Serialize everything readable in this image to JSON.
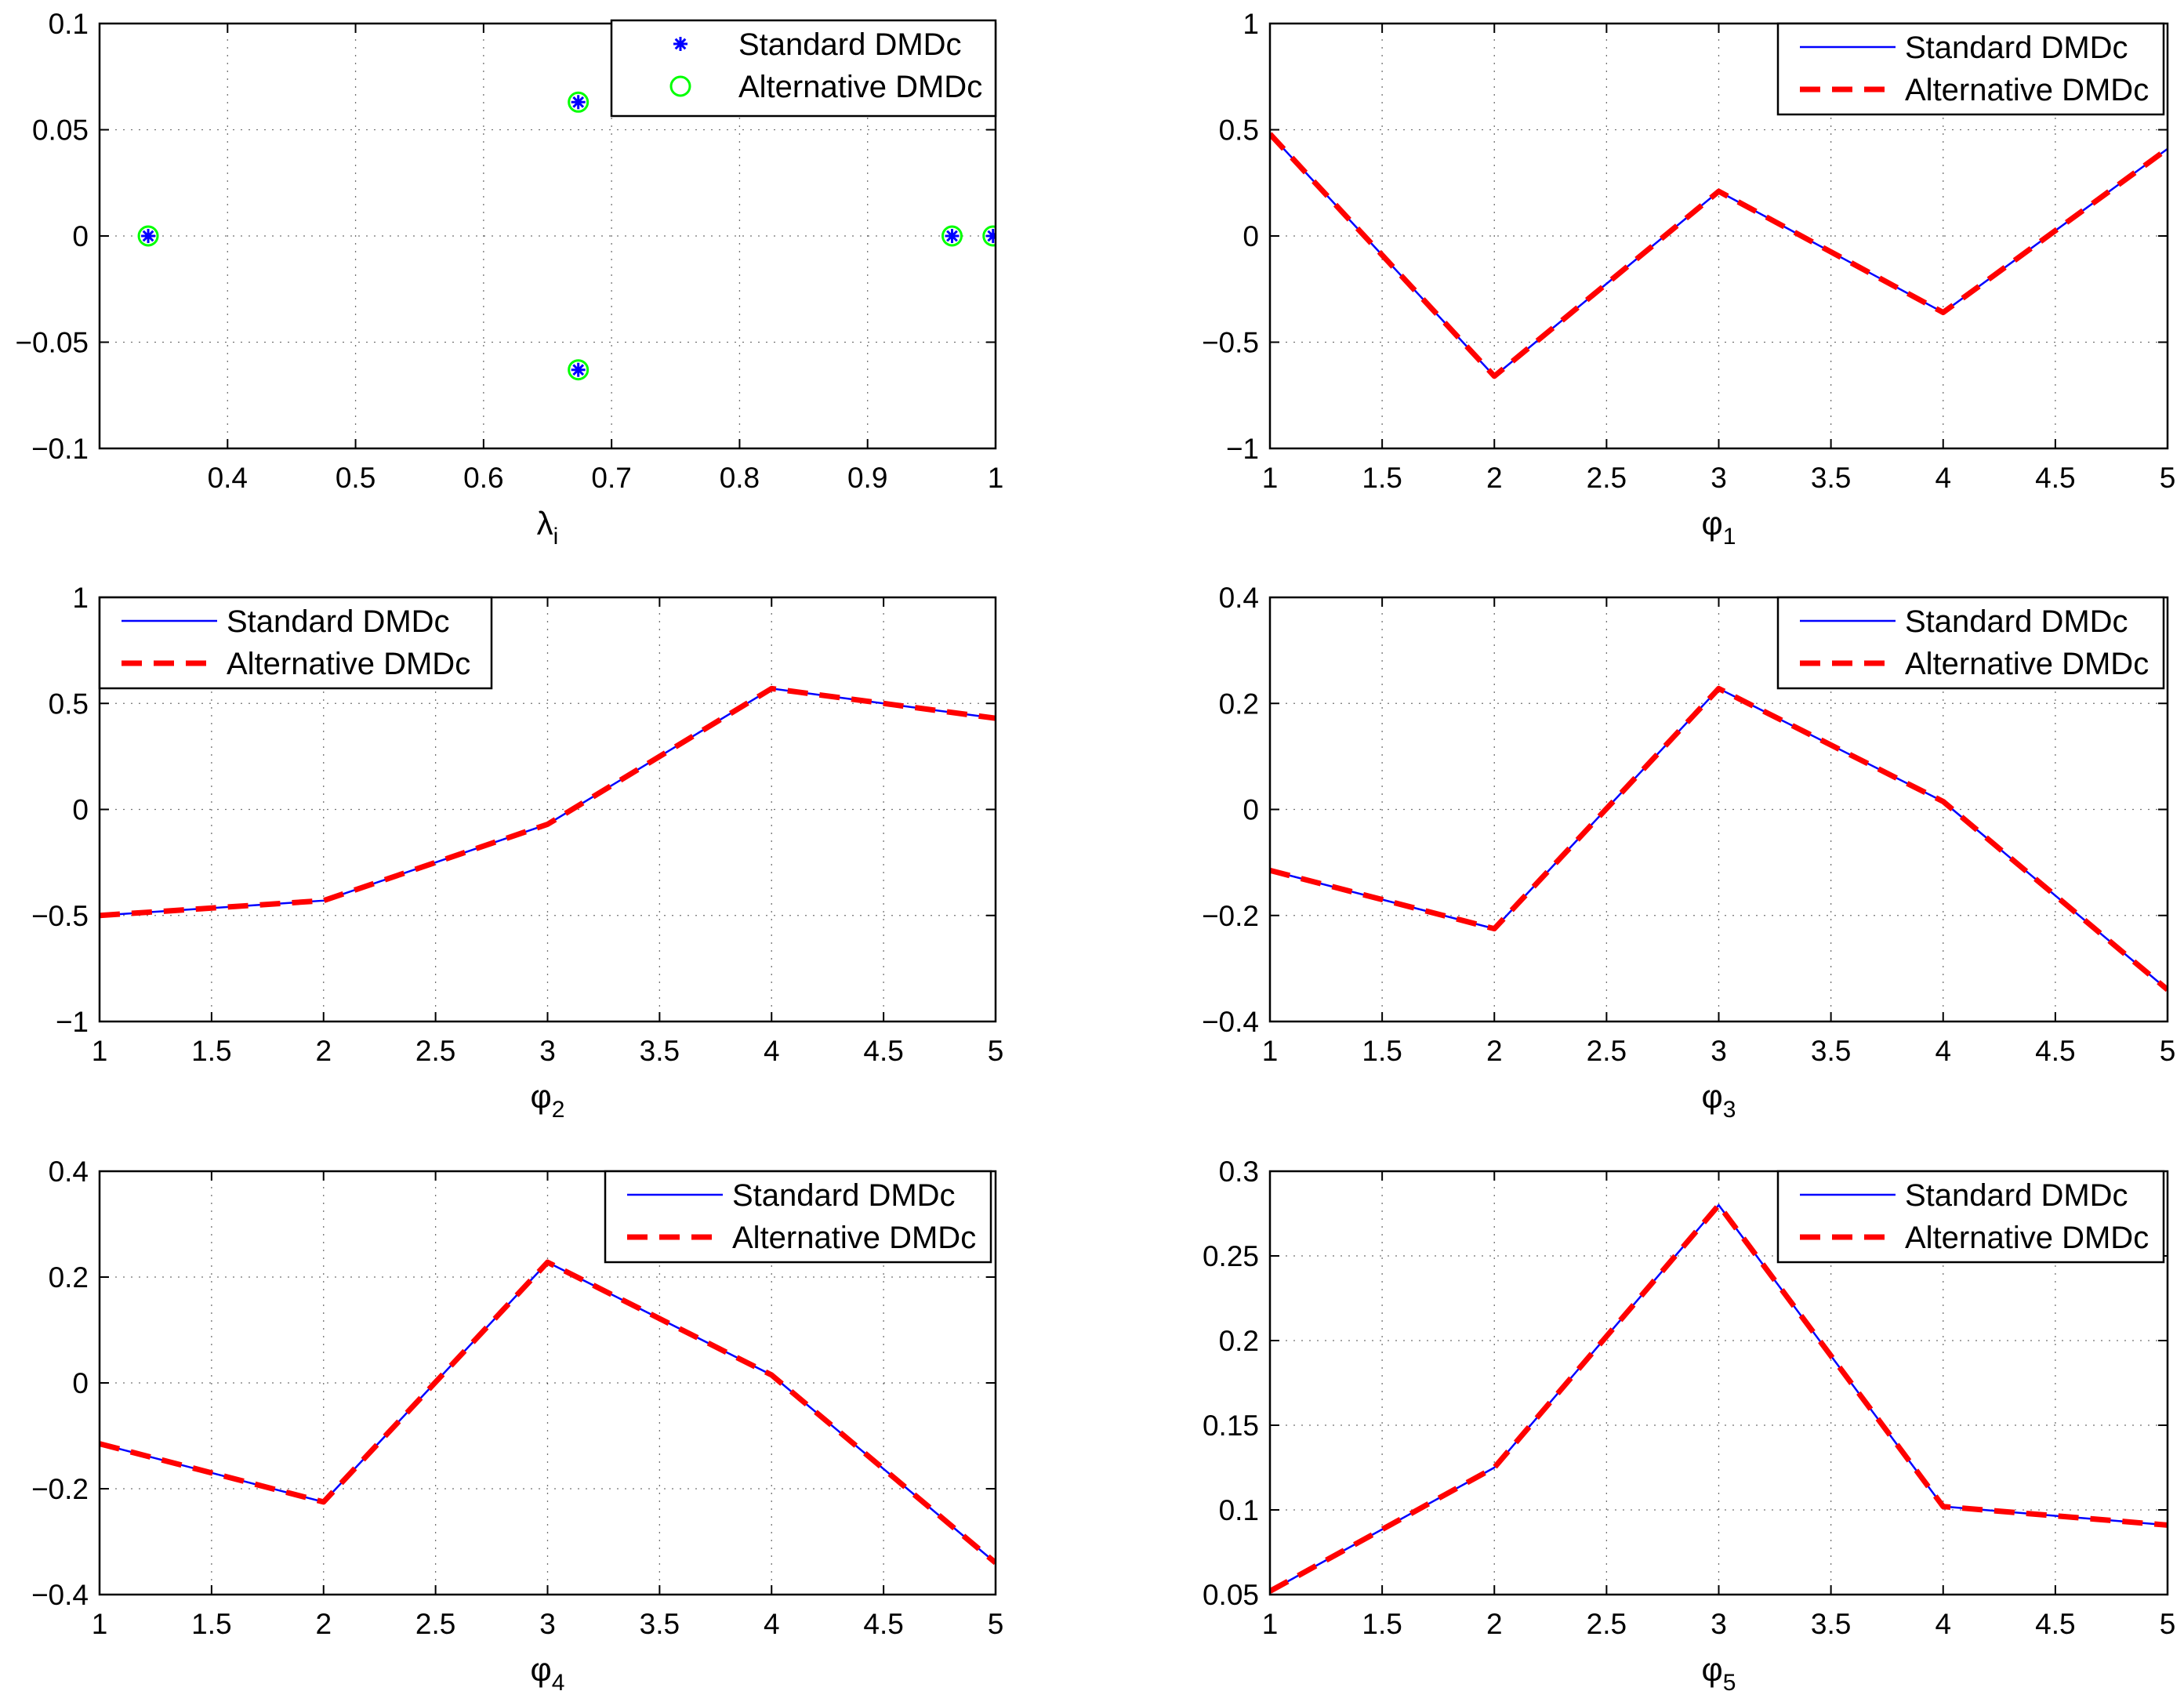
{
  "chart_data": [
    {
      "id": "eigenvalues",
      "type": "scatter",
      "xlabel": "λ",
      "xlabel_sub": "i",
      "xlim": [
        0.3,
        1.0
      ],
      "ylim": [
        -0.1,
        0.1
      ],
      "xticks": [
        0.4,
        0.5,
        0.6,
        0.7,
        0.8,
        0.9,
        1
      ],
      "xtick_labels": [
        "0.4",
        "0.5",
        "0.6",
        "0.7",
        "0.8",
        "0.9",
        "1"
      ],
      "yticks": [
        -0.1,
        -0.05,
        0,
        0.05,
        0.1
      ],
      "ytick_labels": [
        "−0.1",
        "−0.05",
        "0",
        "0.05",
        "0.1"
      ],
      "grid": true,
      "legend_position": "top-right",
      "series": [
        {
          "name": "Standard DMDc",
          "marker": "asterisk",
          "color": "#0000ff",
          "x": [
            0.338,
            0.674,
            0.674,
            0.966,
            0.998
          ],
          "y": [
            0,
            0.063,
            -0.063,
            0,
            0
          ]
        },
        {
          "name": "Alternative DMDc",
          "marker": "circle",
          "color": "#00ff00",
          "x": [
            0.338,
            0.674,
            0.674,
            0.966,
            0.998
          ],
          "y": [
            0,
            0.063,
            -0.063,
            0,
            0
          ]
        }
      ]
    },
    {
      "id": "phi1",
      "type": "line",
      "xlabel": "φ",
      "xlabel_sub": "1",
      "xlim": [
        1,
        5
      ],
      "ylim": [
        -1,
        1
      ],
      "xticks": [
        1,
        1.5,
        2,
        2.5,
        3,
        3.5,
        4,
        4.5,
        5
      ],
      "xtick_labels": [
        "1",
        "1.5",
        "2",
        "2.5",
        "3",
        "3.5",
        "4",
        "4.5",
        "5"
      ],
      "yticks": [
        -1,
        -0.5,
        0,
        0.5,
        1
      ],
      "ytick_labels": [
        "−1",
        "−0.5",
        "0",
        "0.5",
        "1"
      ],
      "grid": true,
      "legend_position": "top-right",
      "x": [
        1,
        2,
        3,
        4,
        5
      ],
      "series": [
        {
          "name": "Standard DMDc",
          "style": "solid",
          "color": "#0000ff",
          "values": [
            0.48,
            -0.66,
            0.21,
            -0.36,
            0.41
          ]
        },
        {
          "name": "Alternative DMDc",
          "style": "dashed",
          "color": "#ff0000",
          "values": [
            0.48,
            -0.66,
            0.21,
            -0.36,
            0.41
          ]
        }
      ]
    },
    {
      "id": "phi2",
      "type": "line",
      "xlabel": "φ",
      "xlabel_sub": "2",
      "xlim": [
        1,
        5
      ],
      "ylim": [
        -1,
        1
      ],
      "xticks": [
        1,
        1.5,
        2,
        2.5,
        3,
        3.5,
        4,
        4.5,
        5
      ],
      "xtick_labels": [
        "1",
        "1.5",
        "2",
        "2.5",
        "3",
        "3.5",
        "4",
        "4.5",
        "5"
      ],
      "yticks": [
        -1,
        -0.5,
        0,
        0.5,
        1
      ],
      "ytick_labels": [
        "−1",
        "−0.5",
        "0",
        "0.5",
        "1"
      ],
      "grid": true,
      "legend_position": "top-left",
      "x": [
        1,
        2,
        3,
        4,
        5
      ],
      "series": [
        {
          "name": "Standard DMDc",
          "style": "solid",
          "color": "#0000ff",
          "values": [
            -0.5,
            -0.43,
            -0.07,
            0.57,
            0.43
          ]
        },
        {
          "name": "Alternative DMDc",
          "style": "dashed",
          "color": "#ff0000",
          "values": [
            -0.5,
            -0.43,
            -0.07,
            0.57,
            0.43
          ]
        }
      ]
    },
    {
      "id": "phi3",
      "type": "line",
      "xlabel": "φ",
      "xlabel_sub": "3",
      "xlim": [
        1,
        5
      ],
      "ylim": [
        -0.4,
        0.4
      ],
      "xticks": [
        1,
        1.5,
        2,
        2.5,
        3,
        3.5,
        4,
        4.5,
        5
      ],
      "xtick_labels": [
        "1",
        "1.5",
        "2",
        "2.5",
        "3",
        "3.5",
        "4",
        "4.5",
        "5"
      ],
      "yticks": [
        -0.4,
        -0.2,
        0,
        0.2,
        0.4
      ],
      "ytick_labels": [
        "−0.4",
        "−0.2",
        "0",
        "0.2",
        "0.4"
      ],
      "grid": true,
      "legend_position": "top-right",
      "x": [
        1,
        2,
        3,
        4,
        5
      ],
      "series": [
        {
          "name": "Standard DMDc",
          "style": "solid",
          "color": "#0000ff",
          "values": [
            -0.115,
            -0.225,
            0.228,
            0.015,
            -0.34
          ]
        },
        {
          "name": "Alternative DMDc",
          "style": "dashed",
          "color": "#ff0000",
          "values": [
            -0.115,
            -0.225,
            0.228,
            0.015,
            -0.34
          ]
        }
      ]
    },
    {
      "id": "phi4",
      "type": "line",
      "xlabel": "φ",
      "xlabel_sub": "4",
      "xlim": [
        1,
        5
      ],
      "ylim": [
        -0.4,
        0.4
      ],
      "xticks": [
        1,
        1.5,
        2,
        2.5,
        3,
        3.5,
        4,
        4.5,
        5
      ],
      "xtick_labels": [
        "1",
        "1.5",
        "2",
        "2.5",
        "3",
        "3.5",
        "4",
        "4.5",
        "5"
      ],
      "yticks": [
        -0.4,
        -0.2,
        0,
        0.2,
        0.4
      ],
      "ytick_labels": [
        "−0.4",
        "−0.2",
        "0",
        "0.2",
        "0.4"
      ],
      "grid": true,
      "legend_position": "top-right",
      "x": [
        1,
        2,
        3,
        4,
        5
      ],
      "series": [
        {
          "name": "Standard DMDc",
          "style": "solid",
          "color": "#0000ff",
          "values": [
            -0.115,
            -0.225,
            0.228,
            0.015,
            -0.34
          ]
        },
        {
          "name": "Alternative DMDc",
          "style": "dashed",
          "color": "#ff0000",
          "values": [
            -0.115,
            -0.225,
            0.228,
            0.015,
            -0.34
          ]
        }
      ]
    },
    {
      "id": "phi5",
      "type": "line",
      "xlabel": "φ",
      "xlabel_sub": "5",
      "xlim": [
        1,
        5
      ],
      "ylim": [
        0.05,
        0.3
      ],
      "xticks": [
        1,
        1.5,
        2,
        2.5,
        3,
        3.5,
        4,
        4.5,
        5
      ],
      "xtick_labels": [
        "1",
        "1.5",
        "2",
        "2.5",
        "3",
        "3.5",
        "4",
        "4.5",
        "5"
      ],
      "yticks": [
        0.05,
        0.1,
        0.15,
        0.2,
        0.25,
        0.3
      ],
      "ytick_labels": [
        "0.05",
        "0.1",
        "0.15",
        "0.2",
        "0.25",
        "0.3"
      ],
      "grid": true,
      "legend_position": "top-right",
      "x": [
        1,
        2,
        3,
        4,
        5
      ],
      "series": [
        {
          "name": "Standard DMDc",
          "style": "solid",
          "color": "#0000ff",
          "values": [
            0.052,
            0.125,
            0.28,
            0.102,
            0.091
          ]
        },
        {
          "name": "Alternative DMDc",
          "style": "dashed",
          "color": "#ff0000",
          "values": [
            0.052,
            0.125,
            0.28,
            0.102,
            0.091
          ]
        }
      ]
    }
  ]
}
